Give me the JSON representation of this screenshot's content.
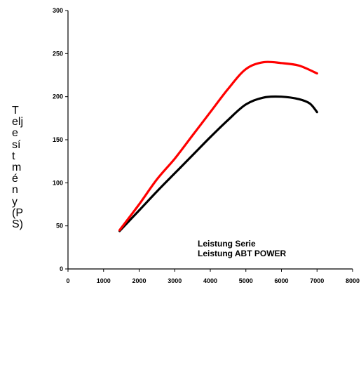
{
  "chart_data": {
    "type": "line",
    "title": "",
    "xlabel": "",
    "ylabel": "Teljesítmény(PS)",
    "xlim": [
      0,
      8000
    ],
    "ylim": [
      0,
      300
    ],
    "x_ticks": [
      "0",
      "1000",
      "2000",
      "3000",
      "4000",
      "5000",
      "6000",
      "7000",
      "8000"
    ],
    "y_ticks": [
      "0",
      "50",
      "100",
      "150",
      "200",
      "250",
      "300"
    ],
    "grid": false,
    "legend_position": "bottom-right",
    "series": [
      {
        "name": "Leistung Serie",
        "color": "#000000",
        "x": [
          1450,
          2000,
          2500,
          3000,
          3500,
          4000,
          4500,
          5000,
          5500,
          6000,
          6500,
          6800,
          7000
        ],
        "y": [
          44,
          68,
          90,
          111,
          132,
          153,
          173,
          191,
          199,
          200,
          197,
          192,
          182
        ]
      },
      {
        "name": "Leistung ABT POWER",
        "color": "#ff0000",
        "x": [
          1450,
          2000,
          2500,
          3000,
          3500,
          4000,
          4500,
          5000,
          5500,
          6000,
          6500,
          7000
        ],
        "y": [
          45,
          75,
          104,
          128,
          155,
          182,
          209,
          232,
          240,
          239,
          236,
          227
        ]
      }
    ]
  }
}
